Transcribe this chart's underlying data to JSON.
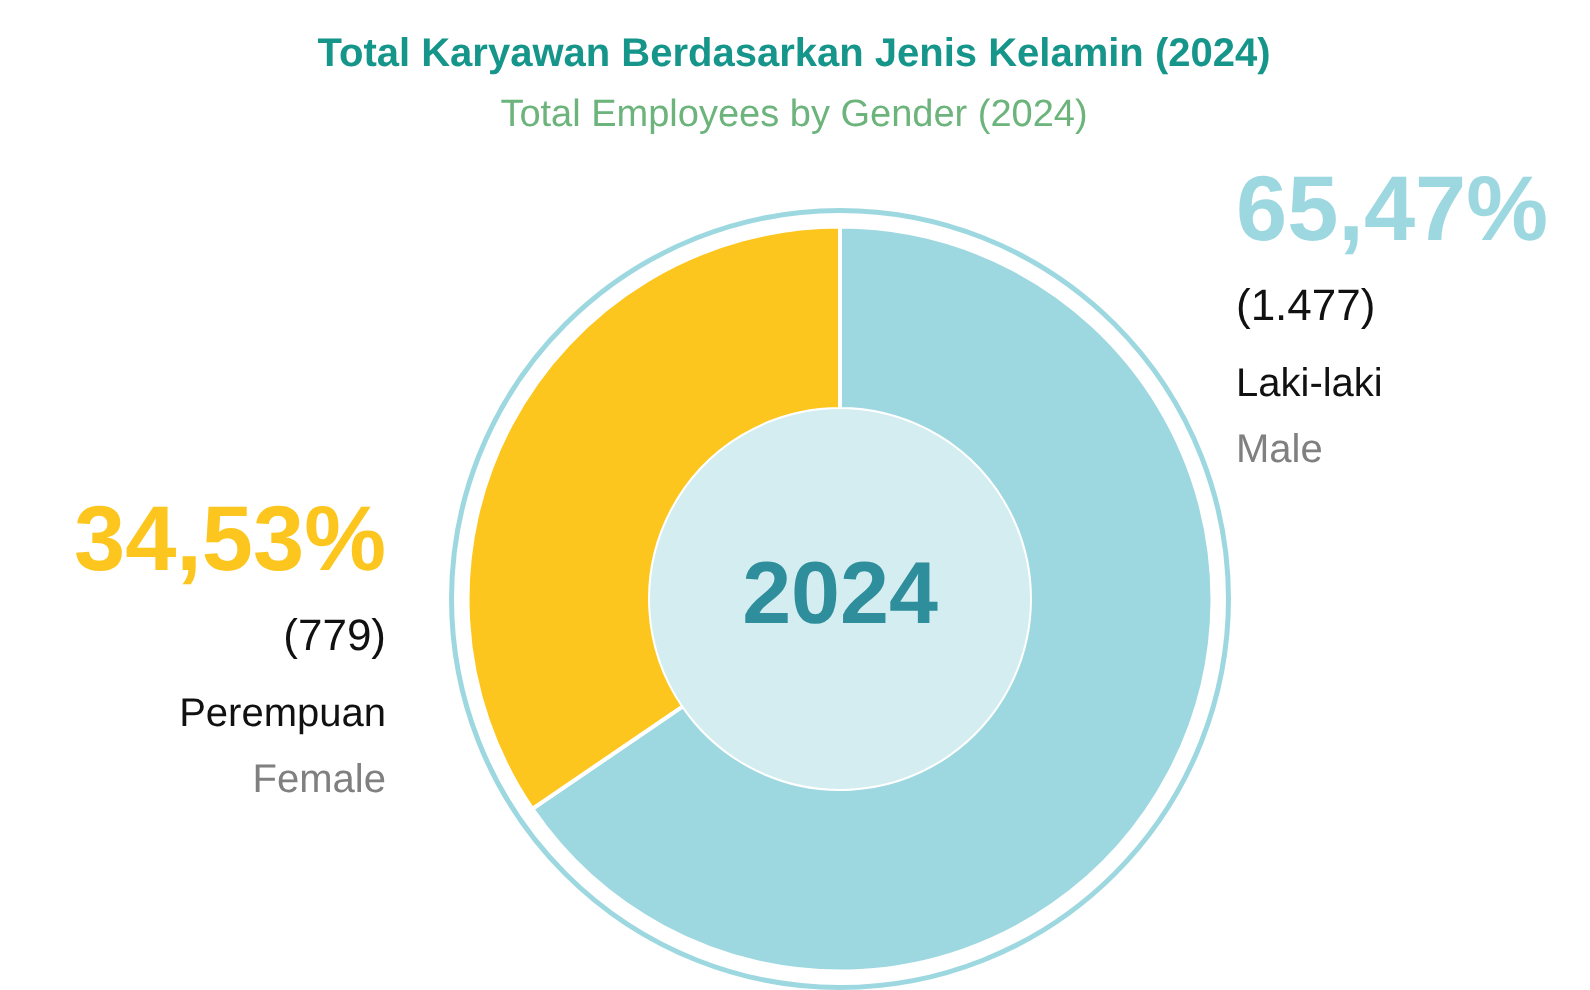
{
  "chart_data": {
    "type": "donut",
    "title": "Total Karyawan Berdasarkan Jenis Kelamin (2024)",
    "subtitle": "Total Employees by Gender (2024)",
    "categories": [
      "Laki-laki",
      "Perempuan"
    ],
    "values": [
      1477,
      779
    ],
    "colors": [
      "#9dd8e0",
      "#fcc61e"
    ],
    "value_labels": [
      "(1.477)",
      "(779)"
    ],
    "annotations": [
      "65,47%",
      "34,53%",
      "Male",
      "Female",
      "2024"
    ]
  }
}
